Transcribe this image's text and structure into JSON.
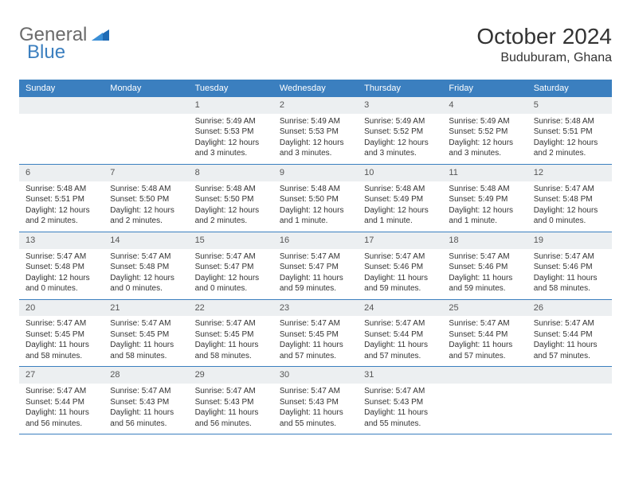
{
  "brand": {
    "part1": "General",
    "part2": "Blue"
  },
  "colors": {
    "header_bg": "#3b7fbf",
    "band_bg": "#eceff1",
    "rule": "#3b7fbf",
    "logo_gray": "#6b6b6b",
    "logo_blue": "#3b7fbf"
  },
  "title": "October 2024",
  "subtitle": "Buduburam, Ghana",
  "days_of_week": [
    "Sunday",
    "Monday",
    "Tuesday",
    "Wednesday",
    "Thursday",
    "Friday",
    "Saturday"
  ],
  "first_weekday_index": 2,
  "days": [
    {
      "n": 1,
      "sunrise": "5:49 AM",
      "sunset": "5:53 PM",
      "daylight": "12 hours and 3 minutes."
    },
    {
      "n": 2,
      "sunrise": "5:49 AM",
      "sunset": "5:53 PM",
      "daylight": "12 hours and 3 minutes."
    },
    {
      "n": 3,
      "sunrise": "5:49 AM",
      "sunset": "5:52 PM",
      "daylight": "12 hours and 3 minutes."
    },
    {
      "n": 4,
      "sunrise": "5:49 AM",
      "sunset": "5:52 PM",
      "daylight": "12 hours and 3 minutes."
    },
    {
      "n": 5,
      "sunrise": "5:48 AM",
      "sunset": "5:51 PM",
      "daylight": "12 hours and 2 minutes."
    },
    {
      "n": 6,
      "sunrise": "5:48 AM",
      "sunset": "5:51 PM",
      "daylight": "12 hours and 2 minutes."
    },
    {
      "n": 7,
      "sunrise": "5:48 AM",
      "sunset": "5:50 PM",
      "daylight": "12 hours and 2 minutes."
    },
    {
      "n": 8,
      "sunrise": "5:48 AM",
      "sunset": "5:50 PM",
      "daylight": "12 hours and 2 minutes."
    },
    {
      "n": 9,
      "sunrise": "5:48 AM",
      "sunset": "5:50 PM",
      "daylight": "12 hours and 1 minute."
    },
    {
      "n": 10,
      "sunrise": "5:48 AM",
      "sunset": "5:49 PM",
      "daylight": "12 hours and 1 minute."
    },
    {
      "n": 11,
      "sunrise": "5:48 AM",
      "sunset": "5:49 PM",
      "daylight": "12 hours and 1 minute."
    },
    {
      "n": 12,
      "sunrise": "5:47 AM",
      "sunset": "5:48 PM",
      "daylight": "12 hours and 0 minutes."
    },
    {
      "n": 13,
      "sunrise": "5:47 AM",
      "sunset": "5:48 PM",
      "daylight": "12 hours and 0 minutes."
    },
    {
      "n": 14,
      "sunrise": "5:47 AM",
      "sunset": "5:48 PM",
      "daylight": "12 hours and 0 minutes."
    },
    {
      "n": 15,
      "sunrise": "5:47 AM",
      "sunset": "5:47 PM",
      "daylight": "12 hours and 0 minutes."
    },
    {
      "n": 16,
      "sunrise": "5:47 AM",
      "sunset": "5:47 PM",
      "daylight": "11 hours and 59 minutes."
    },
    {
      "n": 17,
      "sunrise": "5:47 AM",
      "sunset": "5:46 PM",
      "daylight": "11 hours and 59 minutes."
    },
    {
      "n": 18,
      "sunrise": "5:47 AM",
      "sunset": "5:46 PM",
      "daylight": "11 hours and 59 minutes."
    },
    {
      "n": 19,
      "sunrise": "5:47 AM",
      "sunset": "5:46 PM",
      "daylight": "11 hours and 58 minutes."
    },
    {
      "n": 20,
      "sunrise": "5:47 AM",
      "sunset": "5:45 PM",
      "daylight": "11 hours and 58 minutes."
    },
    {
      "n": 21,
      "sunrise": "5:47 AM",
      "sunset": "5:45 PM",
      "daylight": "11 hours and 58 minutes."
    },
    {
      "n": 22,
      "sunrise": "5:47 AM",
      "sunset": "5:45 PM",
      "daylight": "11 hours and 58 minutes."
    },
    {
      "n": 23,
      "sunrise": "5:47 AM",
      "sunset": "5:45 PM",
      "daylight": "11 hours and 57 minutes."
    },
    {
      "n": 24,
      "sunrise": "5:47 AM",
      "sunset": "5:44 PM",
      "daylight": "11 hours and 57 minutes."
    },
    {
      "n": 25,
      "sunrise": "5:47 AM",
      "sunset": "5:44 PM",
      "daylight": "11 hours and 57 minutes."
    },
    {
      "n": 26,
      "sunrise": "5:47 AM",
      "sunset": "5:44 PM",
      "daylight": "11 hours and 57 minutes."
    },
    {
      "n": 27,
      "sunrise": "5:47 AM",
      "sunset": "5:44 PM",
      "daylight": "11 hours and 56 minutes."
    },
    {
      "n": 28,
      "sunrise": "5:47 AM",
      "sunset": "5:43 PM",
      "daylight": "11 hours and 56 minutes."
    },
    {
      "n": 29,
      "sunrise": "5:47 AM",
      "sunset": "5:43 PM",
      "daylight": "11 hours and 56 minutes."
    },
    {
      "n": 30,
      "sunrise": "5:47 AM",
      "sunset": "5:43 PM",
      "daylight": "11 hours and 55 minutes."
    },
    {
      "n": 31,
      "sunrise": "5:47 AM",
      "sunset": "5:43 PM",
      "daylight": "11 hours and 55 minutes."
    }
  ],
  "labels": {
    "sunrise": "Sunrise:",
    "sunset": "Sunset:",
    "daylight": "Daylight:"
  }
}
